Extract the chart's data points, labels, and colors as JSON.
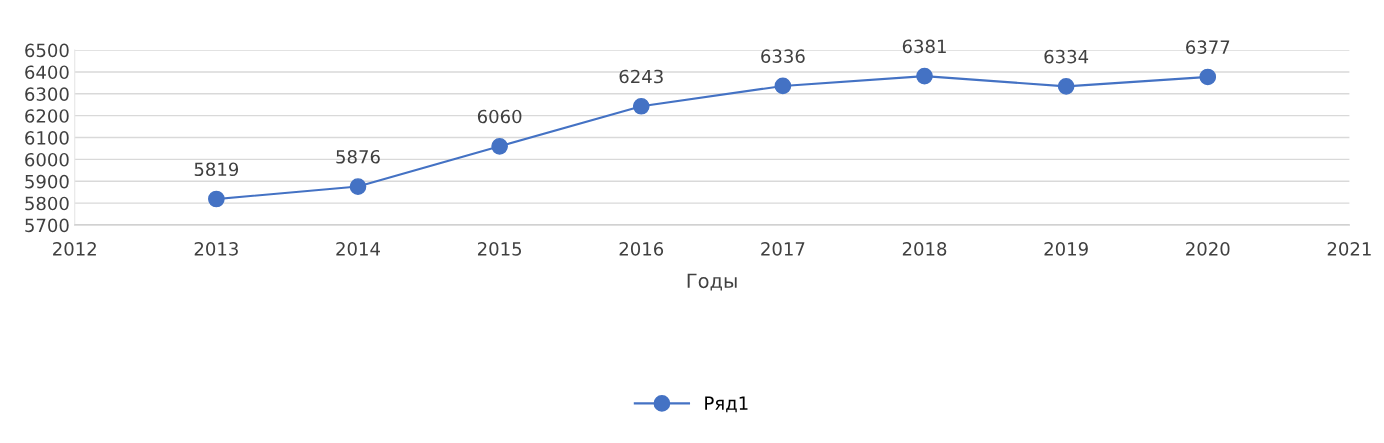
{
  "chart_data": {
    "type": "line",
    "xlabel": "Годы",
    "x": [
      2013,
      2014,
      2015,
      2016,
      2017,
      2018,
      2019,
      2020
    ],
    "series": [
      {
        "name": "Ряд1",
        "color": "#4472c4",
        "values": [
          5819,
          5876,
          6060,
          6243,
          6336,
          6381,
          6334,
          6377
        ]
      }
    ],
    "xlim": [
      2012,
      2021
    ],
    "xticks": [
      2012,
      2013,
      2014,
      2015,
      2016,
      2017,
      2018,
      2019,
      2020,
      2021
    ],
    "ylim": [
      5700,
      6500
    ],
    "yticks": [
      5700,
      5800,
      5900,
      6000,
      6100,
      6200,
      6300,
      6400,
      6500
    ],
    "grid": "y",
    "legend": "bottom",
    "marker": "circle",
    "line_style": "solid",
    "data_labels": true
  }
}
